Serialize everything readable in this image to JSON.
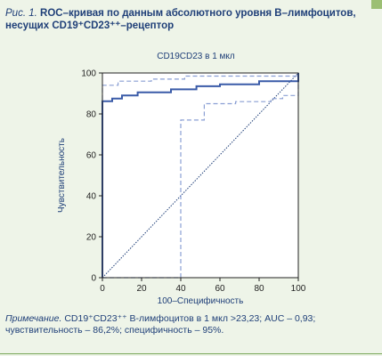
{
  "caption": {
    "label": "Рис. 1.",
    "title": "ROC–кривая по данным абсолютного уровня В–лимфоцитов, несущих CD19⁺CD23⁺⁺–рецептор"
  },
  "note": {
    "label": "Примечание.",
    "text": "CD19⁺CD23⁺⁺ В-лимфоцитов в 1 мкл >23,23; AUC – 0,93; чувствительность – 86,2%; специфичность – 95%."
  },
  "colors": {
    "roc": "#3a5ba8",
    "ci": "#8a9fd4",
    "diagonal": "#1f3f78",
    "text": "#1f3f78",
    "axis": "#222222",
    "background": "#eef4e8",
    "plot_bg": "#ffffff",
    "accent": "#9cbf74"
  },
  "chart_data": {
    "type": "line",
    "title": "CD19CD23 в 1 мкл",
    "xlabel": "100–Специфичность",
    "ylabel": "Чувствительность",
    "xlim": [
      0,
      100
    ],
    "ylim": [
      0,
      100
    ],
    "xticks": [
      0,
      20,
      40,
      60,
      80,
      100
    ],
    "yticks": [
      0,
      20,
      40,
      60,
      80,
      100
    ],
    "grid": false,
    "series": [
      {
        "style": "solid-step",
        "points": [
          [
            0,
            0
          ],
          [
            0,
            86.2
          ],
          [
            5,
            86.2
          ],
          [
            5,
            87.5
          ],
          [
            10,
            87.5
          ],
          [
            10,
            89
          ],
          [
            18,
            89
          ],
          [
            18,
            90.5
          ],
          [
            35,
            90.5
          ],
          [
            35,
            92
          ],
          [
            48,
            92
          ],
          [
            48,
            93.5
          ],
          [
            60,
            93.5
          ],
          [
            60,
            94.5
          ],
          [
            80,
            94.5
          ],
          [
            80,
            96
          ],
          [
            100,
            96
          ],
          [
            100,
            100
          ]
        ]
      },
      {
        "style": "dashed-upper",
        "points": [
          [
            0,
            0
          ],
          [
            0,
            94
          ],
          [
            8,
            94
          ],
          [
            8,
            96
          ],
          [
            25,
            96
          ],
          [
            25,
            97
          ],
          [
            42,
            97
          ],
          [
            42,
            98.5
          ],
          [
            100,
            98.5
          ],
          [
            100,
            100
          ]
        ]
      },
      {
        "style": "dashed-lower",
        "points": [
          [
            0,
            0
          ],
          [
            40,
            0
          ],
          [
            40,
            77
          ],
          [
            52,
            77
          ],
          [
            52,
            85
          ],
          [
            68,
            85
          ],
          [
            68,
            86
          ],
          [
            86,
            86
          ],
          [
            86,
            87.5
          ],
          [
            92,
            87.5
          ],
          [
            92,
            89
          ],
          [
            100,
            89
          ],
          [
            100,
            100
          ]
        ]
      },
      {
        "style": "dotted-diagonal",
        "points": [
          [
            0,
            0
          ],
          [
            100,
            100
          ]
        ]
      }
    ]
  }
}
